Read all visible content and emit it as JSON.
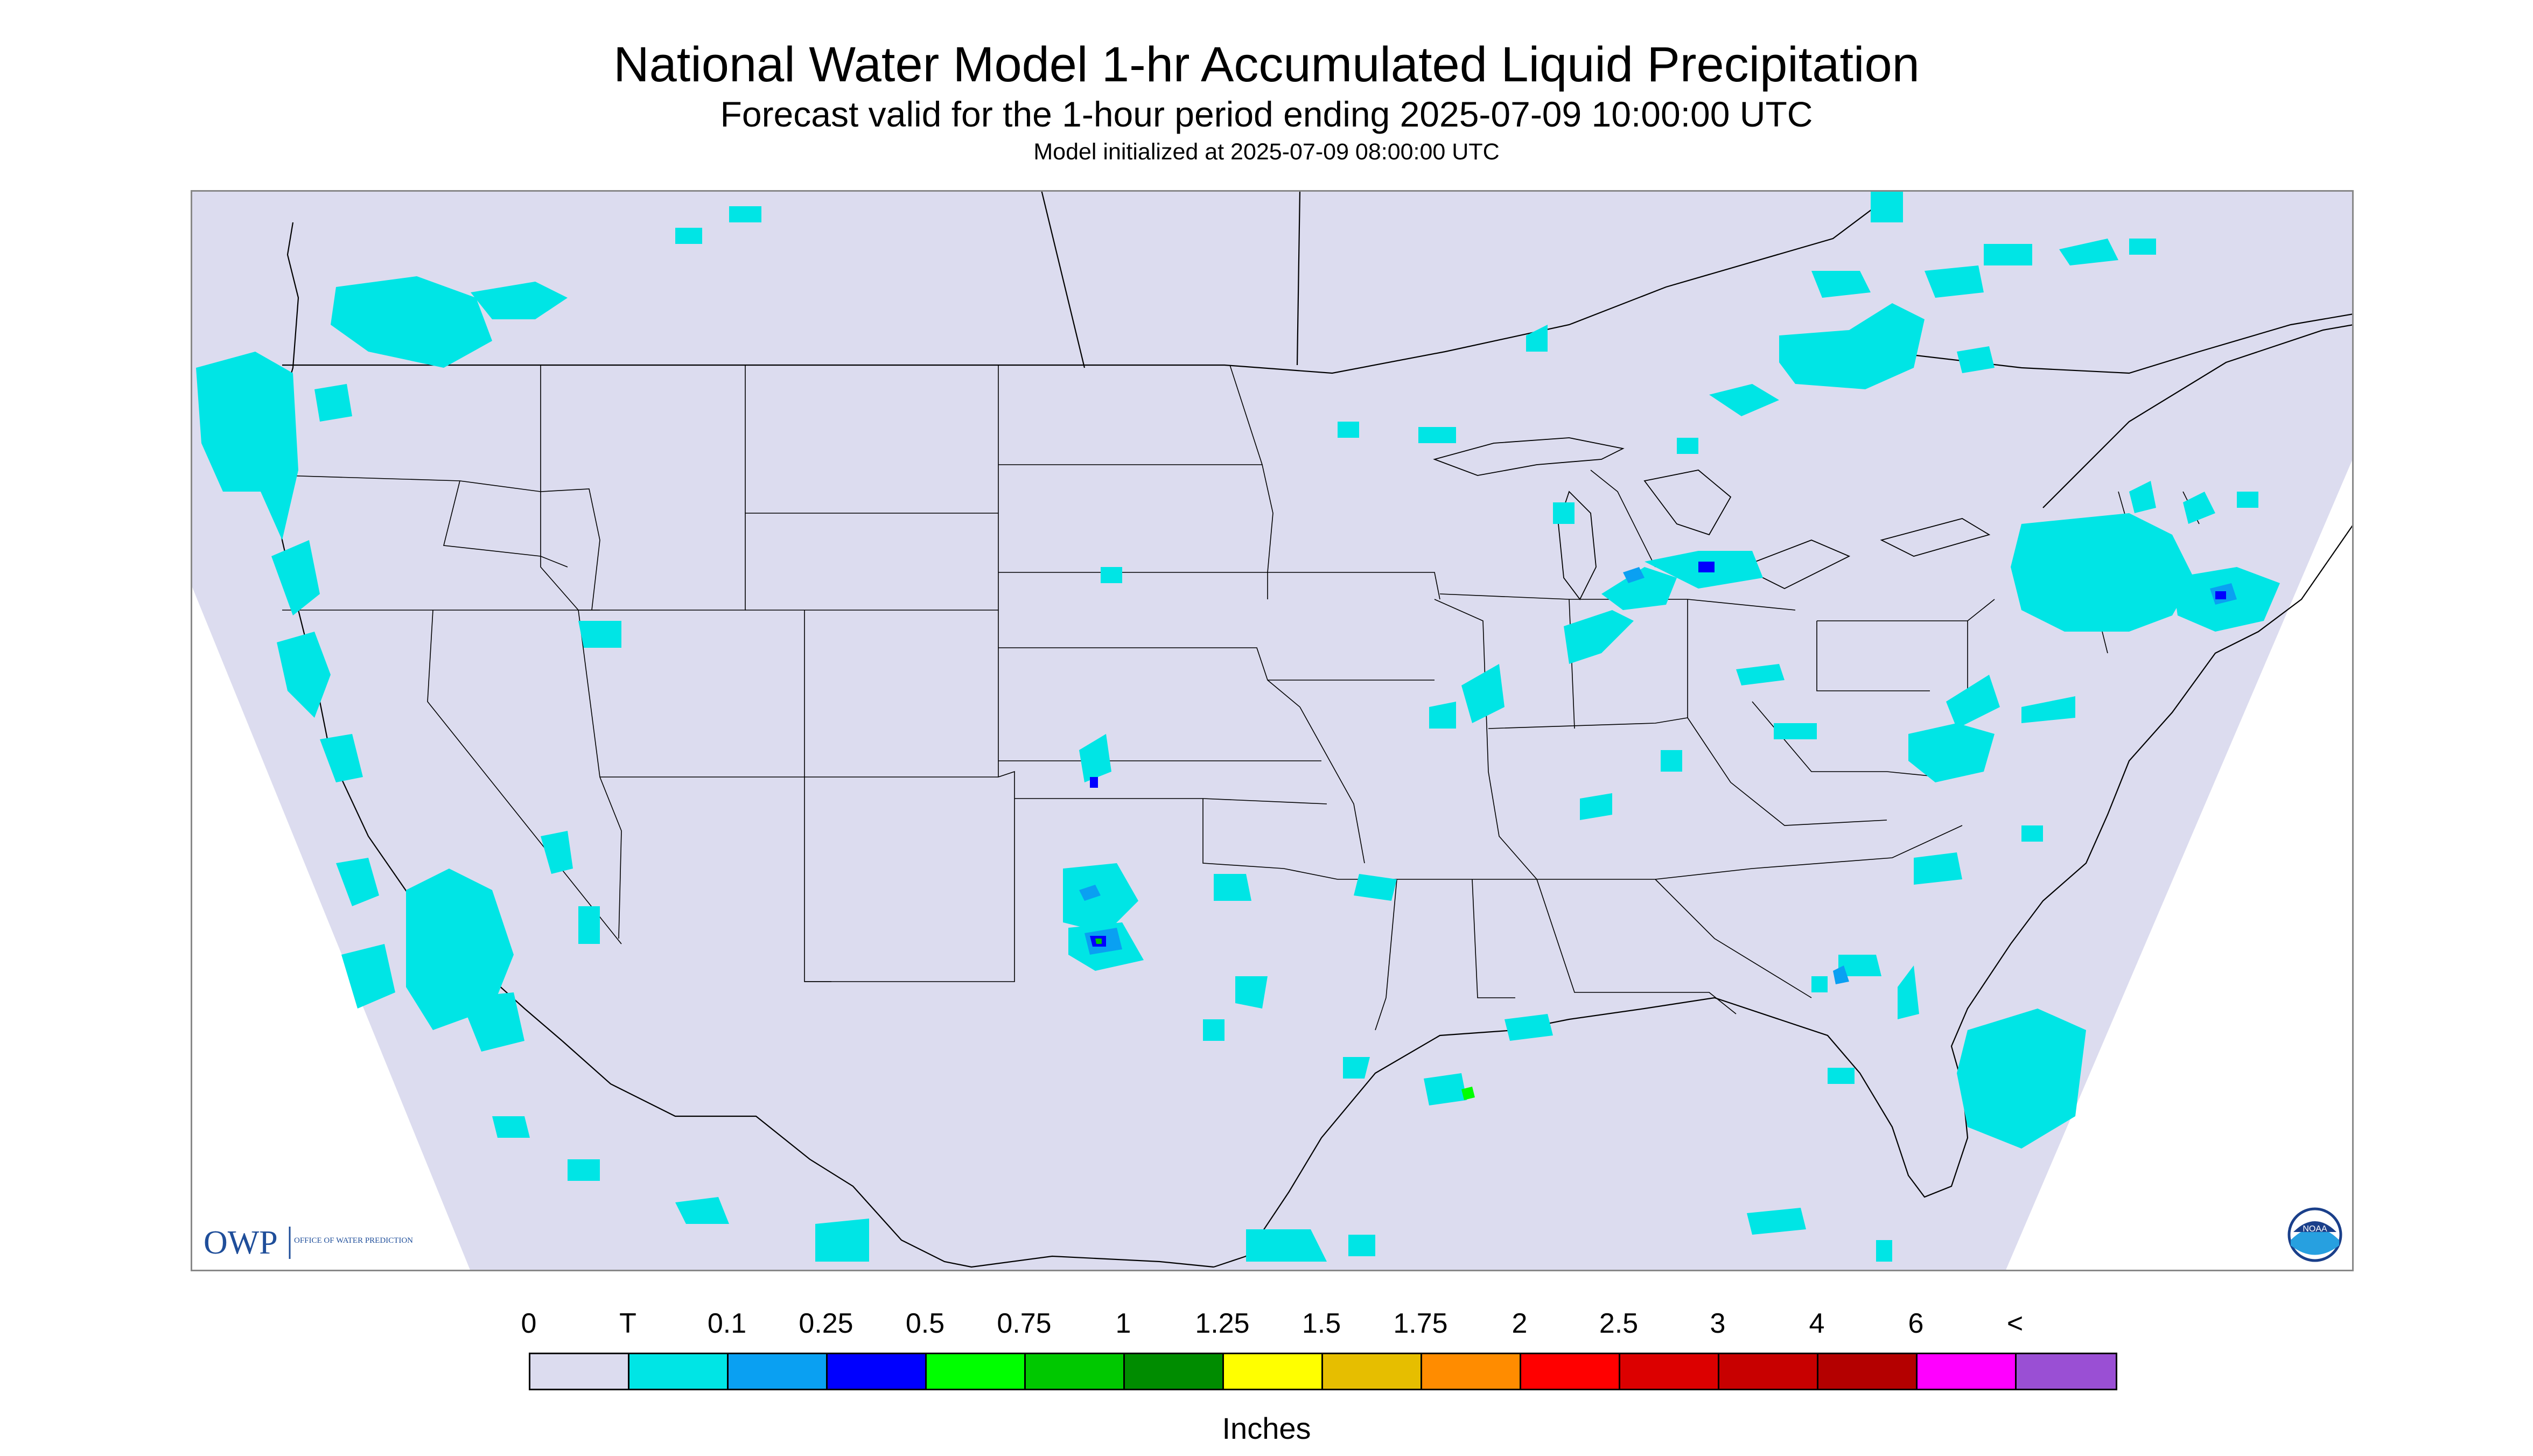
{
  "title": "National Water Model 1-hr Accumulated Liquid Precipitation",
  "subtitle": "Forecast valid for the 1-hour period ending 2025-07-09 10:00:00 UTC",
  "init_text": "Model initialized at 2025-07-09 08:00:00 UTC",
  "logo": {
    "owp_text": "OWP",
    "owp_subtext": "OFFICE OF WATER PREDICTION",
    "noaa_text": "NOAA"
  },
  "colors": {
    "background_no_precip": "#dcdcef",
    "trace": "#00e5e5",
    "state_lines": "#000000"
  },
  "legend": {
    "labels": [
      "0",
      "T",
      "0.1",
      "0.25",
      "0.5",
      "0.75",
      "1",
      "1.25",
      "1.5",
      "1.75",
      "2",
      "2.5",
      "3",
      "4",
      "6",
      "<"
    ],
    "colors": [
      "#dcdcef",
      "#00e5e5",
      "#0aa0f2",
      "#0000ff",
      "#00ff00",
      "#00c800",
      "#008c00",
      "#ffff00",
      "#e6be00",
      "#ff8c00",
      "#ff0000",
      "#dc0000",
      "#c80000",
      "#b40000",
      "#ff00ff",
      "#9a4fd4"
    ],
    "units": "Inches"
  }
}
